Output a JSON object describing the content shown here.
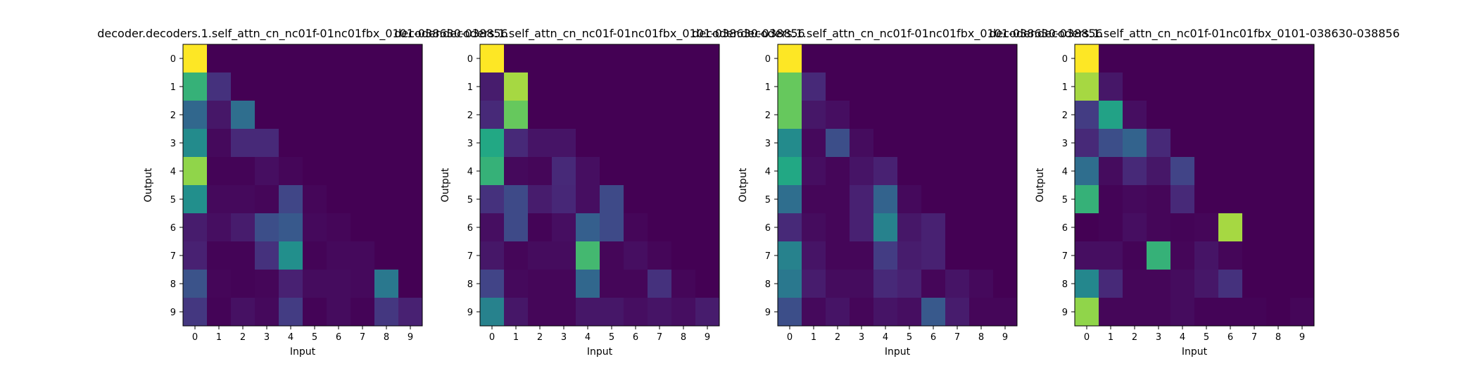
{
  "figure": {
    "colormap": "viridis",
    "background": "#ffffff"
  },
  "chart_data": [
    {
      "type": "heatmap",
      "title": "decoder.decoders.1.self_attn_cn_nc01f-01nc01fbx_0101-038630-038856",
      "xlabel": "Input",
      "ylabel": "Output",
      "x": [
        "0",
        "1",
        "2",
        "3",
        "4",
        "5",
        "6",
        "7",
        "8",
        "9"
      ],
      "y": [
        "0",
        "1",
        "2",
        "3",
        "4",
        "5",
        "6",
        "7",
        "8",
        "9"
      ],
      "value_range": [
        0,
        1
      ],
      "values": [
        [
          1.0,
          0.0,
          0.0,
          0.0,
          0.0,
          0.0,
          0.0,
          0.0,
          0.0,
          0.0
        ],
        [
          0.78,
          0.18,
          0.0,
          0.0,
          0.0,
          0.0,
          0.0,
          0.0,
          0.0,
          0.0
        ],
        [
          0.42,
          0.08,
          0.45,
          0.0,
          0.0,
          0.0,
          0.0,
          0.0,
          0.0,
          0.0
        ],
        [
          0.6,
          0.03,
          0.15,
          0.15,
          0.0,
          0.0,
          0.0,
          0.0,
          0.0,
          0.0
        ],
        [
          0.9,
          0.01,
          0.01,
          0.05,
          0.02,
          0.0,
          0.0,
          0.0,
          0.0,
          0.0
        ],
        [
          0.62,
          0.03,
          0.03,
          0.02,
          0.26,
          0.02,
          0.0,
          0.0,
          0.0,
          0.0
        ],
        [
          0.1,
          0.05,
          0.1,
          0.3,
          0.35,
          0.03,
          0.02,
          0.0,
          0.0,
          0.0
        ],
        [
          0.12,
          0.01,
          0.01,
          0.18,
          0.62,
          0.01,
          0.03,
          0.03,
          0.0,
          0.0
        ],
        [
          0.32,
          0.02,
          0.01,
          0.02,
          0.12,
          0.04,
          0.04,
          0.03,
          0.5,
          0.0
        ],
        [
          0.2,
          0.01,
          0.06,
          0.03,
          0.22,
          0.01,
          0.04,
          0.01,
          0.2,
          0.12
        ]
      ]
    },
    {
      "type": "heatmap",
      "title": "decoder.decoders.1.self_attn_cn_nc01f-01nc01fbx_0101-038630-038856",
      "xlabel": "Input",
      "ylabel": "Output",
      "x": [
        "0",
        "1",
        "2",
        "3",
        "4",
        "5",
        "6",
        "7",
        "8",
        "9"
      ],
      "y": [
        "0",
        "1",
        "2",
        "3",
        "4",
        "5",
        "6",
        "7",
        "8",
        "9"
      ],
      "value_range": [
        0,
        1
      ],
      "values": [
        [
          1.0,
          0.0,
          0.0,
          0.0,
          0.0,
          0.0,
          0.0,
          0.0,
          0.0,
          0.0
        ],
        [
          0.1,
          0.92,
          0.0,
          0.0,
          0.0,
          0.0,
          0.0,
          0.0,
          0.0,
          0.0
        ],
        [
          0.15,
          0.85,
          0.0,
          0.0,
          0.0,
          0.0,
          0.0,
          0.0,
          0.0,
          0.0
        ],
        [
          0.75,
          0.15,
          0.07,
          0.07,
          0.0,
          0.0,
          0.0,
          0.0,
          0.0,
          0.0
        ],
        [
          0.78,
          0.03,
          0.02,
          0.15,
          0.05,
          0.0,
          0.0,
          0.0,
          0.0,
          0.0
        ],
        [
          0.18,
          0.28,
          0.1,
          0.14,
          0.05,
          0.28,
          0.0,
          0.0,
          0.0,
          0.0
        ],
        [
          0.05,
          0.28,
          0.01,
          0.05,
          0.38,
          0.28,
          0.02,
          0.0,
          0.0,
          0.0
        ],
        [
          0.08,
          0.02,
          0.04,
          0.04,
          0.8,
          0.02,
          0.05,
          0.02,
          0.0,
          0.0
        ],
        [
          0.25,
          0.03,
          0.02,
          0.02,
          0.42,
          0.02,
          0.02,
          0.18,
          0.02,
          0.0
        ],
        [
          0.55,
          0.08,
          0.02,
          0.02,
          0.08,
          0.08,
          0.05,
          0.07,
          0.05,
          0.1
        ]
      ]
    },
    {
      "type": "heatmap",
      "title": "decoder.decoders.1.self_attn_cn_nc01f-01nc01fbx_0101-038630-038856",
      "xlabel": "Input",
      "ylabel": "Output",
      "x": [
        "0",
        "1",
        "2",
        "3",
        "4",
        "5",
        "6",
        "7",
        "8",
        "9"
      ],
      "y": [
        "0",
        "1",
        "2",
        "3",
        "4",
        "5",
        "6",
        "7",
        "8",
        "9"
      ],
      "value_range": [
        0,
        1
      ],
      "values": [
        [
          1.0,
          0.0,
          0.0,
          0.0,
          0.0,
          0.0,
          0.0,
          0.0,
          0.0,
          0.0
        ],
        [
          0.85,
          0.15,
          0.0,
          0.0,
          0.0,
          0.0,
          0.0,
          0.0,
          0.0,
          0.0
        ],
        [
          0.85,
          0.08,
          0.05,
          0.0,
          0.0,
          0.0,
          0.0,
          0.0,
          0.0,
          0.0
        ],
        [
          0.6,
          0.03,
          0.3,
          0.04,
          0.0,
          0.0,
          0.0,
          0.0,
          0.0,
          0.0
        ],
        [
          0.75,
          0.05,
          0.02,
          0.07,
          0.12,
          0.0,
          0.0,
          0.0,
          0.0,
          0.0
        ],
        [
          0.45,
          0.02,
          0.02,
          0.12,
          0.4,
          0.03,
          0.0,
          0.0,
          0.0,
          0.0
        ],
        [
          0.15,
          0.04,
          0.02,
          0.12,
          0.55,
          0.08,
          0.12,
          0.0,
          0.0,
          0.0
        ],
        [
          0.55,
          0.07,
          0.02,
          0.02,
          0.22,
          0.1,
          0.12,
          0.0,
          0.0,
          0.0
        ],
        [
          0.5,
          0.1,
          0.04,
          0.04,
          0.15,
          0.12,
          0.02,
          0.07,
          0.03,
          0.0
        ],
        [
          0.3,
          0.03,
          0.07,
          0.02,
          0.07,
          0.05,
          0.35,
          0.1,
          0.02,
          0.02
        ]
      ]
    },
    {
      "type": "heatmap",
      "title": "decoder.decoders.1.self_attn_cn_nc01f-01nc01fbx_0101-038630-038856",
      "xlabel": "Input",
      "ylabel": "Output",
      "x": [
        "0",
        "1",
        "2",
        "3",
        "4",
        "5",
        "6",
        "7",
        "8",
        "9"
      ],
      "y": [
        "0",
        "1",
        "2",
        "3",
        "4",
        "5",
        "6",
        "7",
        "8",
        "9"
      ],
      "value_range": [
        0,
        1
      ],
      "values": [
        [
          1.0,
          0.0,
          0.0,
          0.0,
          0.0,
          0.0,
          0.0,
          0.0,
          0.0,
          0.0
        ],
        [
          0.92,
          0.08,
          0.0,
          0.0,
          0.0,
          0.0,
          0.0,
          0.0,
          0.0,
          0.0
        ],
        [
          0.22,
          0.72,
          0.05,
          0.0,
          0.0,
          0.0,
          0.0,
          0.0,
          0.0,
          0.0
        ],
        [
          0.15,
          0.3,
          0.4,
          0.15,
          0.0,
          0.0,
          0.0,
          0.0,
          0.0,
          0.0
        ],
        [
          0.45,
          0.04,
          0.15,
          0.08,
          0.25,
          0.0,
          0.0,
          0.0,
          0.0,
          0.0
        ],
        [
          0.78,
          0.01,
          0.03,
          0.02,
          0.15,
          0.0,
          0.0,
          0.0,
          0.0,
          0.0
        ],
        [
          0.0,
          0.01,
          0.05,
          0.02,
          0.01,
          0.02,
          0.92,
          0.0,
          0.0,
          0.0
        ],
        [
          0.05,
          0.05,
          0.01,
          0.78,
          0.02,
          0.07,
          0.02,
          0.0,
          0.0,
          0.0
        ],
        [
          0.58,
          0.15,
          0.02,
          0.02,
          0.04,
          0.08,
          0.18,
          0.0,
          0.0,
          0.0
        ],
        [
          0.9,
          0.02,
          0.02,
          0.02,
          0.04,
          0.01,
          0.01,
          0.01,
          0.0,
          0.02
        ]
      ]
    }
  ]
}
